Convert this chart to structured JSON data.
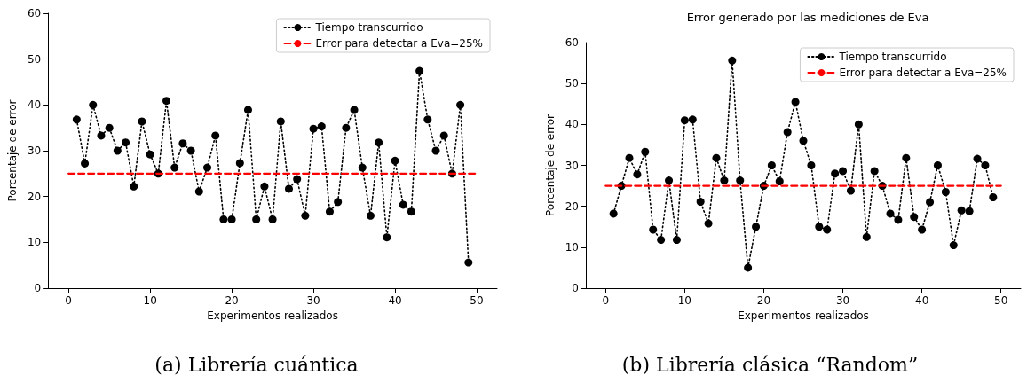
{
  "chart_data": [
    {
      "type": "line",
      "xlabel": "Experimentos realizados",
      "ylabel": "Porcentaje de error",
      "annotations": [
        "(a) Librería cuántica"
      ],
      "x": [
        1,
        2,
        3,
        4,
        5,
        6,
        7,
        8,
        9,
        10,
        11,
        12,
        13,
        14,
        15,
        16,
        17,
        18,
        19,
        20,
        21,
        22,
        23,
        24,
        25,
        26,
        27,
        28,
        29,
        30,
        31,
        32,
        33,
        34,
        35,
        36,
        37,
        38,
        39,
        40,
        41,
        42,
        43,
        44,
        45,
        46,
        47,
        48,
        49
      ],
      "xlim": [
        -2.5,
        52.5
      ],
      "xticks": [
        0,
        10,
        20,
        30,
        40,
        50
      ],
      "ylim": [
        0,
        60
      ],
      "yticks": [
        0,
        10,
        20,
        30,
        40,
        50,
        60
      ],
      "grid": false,
      "legend": "top right",
      "series": [
        {
          "name": "Tiempo transcurrido",
          "color": "#000000",
          "marker": "circle",
          "line_style": "dotted",
          "values": [
            36.8,
            27.2,
            40,
            33.3,
            35,
            30,
            31.8,
            22.2,
            36.4,
            29.2,
            25,
            40.9,
            26.3,
            31.6,
            30,
            21.1,
            26.3,
            33.3,
            15,
            15,
            27.3,
            38.9,
            15,
            22.2,
            15,
            36.4,
            21.7,
            23.8,
            15.8,
            34.8,
            35.3,
            16.7,
            18.8,
            35,
            38.9,
            26.3,
            15.8,
            31.8,
            11.1,
            27.8,
            18.2,
            16.7,
            47.4,
            36.8,
            30,
            33.3,
            25,
            40,
            5.6
          ]
        }
      ],
      "ref_lines": [
        {
          "axis": "y",
          "value": 25,
          "label": "Error para detectar a Eva=25%",
          "color": "#ff0000",
          "line_style": "dashed"
        }
      ]
    },
    {
      "type": "line",
      "title": "Error generado por las mediciones de Eva",
      "xlabel": "Experimentos realizados",
      "ylabel": "Porcentaje de error",
      "annotations": [
        "(b) Librería clásica “Random”"
      ],
      "x": [
        1,
        2,
        3,
        4,
        5,
        6,
        7,
        8,
        9,
        10,
        11,
        12,
        13,
        14,
        15,
        16,
        17,
        18,
        19,
        20,
        21,
        22,
        23,
        24,
        25,
        26,
        27,
        28,
        29,
        30,
        31,
        32,
        33,
        34,
        35,
        36,
        37,
        38,
        39,
        40,
        41,
        42,
        43,
        44,
        45,
        46,
        47,
        48,
        49
      ],
      "xlim": [
        -2.5,
        52.5
      ],
      "xticks": [
        0,
        10,
        20,
        30,
        40,
        50
      ],
      "ylim": [
        0,
        60
      ],
      "yticks": [
        0,
        10,
        20,
        30,
        40,
        50,
        60
      ],
      "grid": false,
      "legend": "top right",
      "series": [
        {
          "name": "Tiempo transcurrido",
          "color": "#000000",
          "marker": "circle",
          "line_style": "dotted",
          "values": [
            18.2,
            25,
            31.8,
            27.8,
            33.3,
            14.3,
            11.8,
            26.3,
            11.8,
            41,
            41.2,
            21.1,
            15.8,
            31.8,
            26.3,
            55.6,
            26.3,
            5,
            15,
            25,
            30,
            26.1,
            38.1,
            45.5,
            36,
            30,
            15,
            14.3,
            28,
            28.6,
            23.8,
            40,
            12.5,
            28.6,
            25,
            18.2,
            16.7,
            31.8,
            17.4,
            14.3,
            21,
            30,
            23.5,
            10.5,
            19,
            18.8,
            31.6,
            30,
            22.2
          ]
        }
      ],
      "ref_lines": [
        {
          "axis": "y",
          "value": 25,
          "label": "Error para detectar a Eva=25%",
          "color": "#ff0000",
          "line_style": "dashed"
        }
      ]
    }
  ]
}
